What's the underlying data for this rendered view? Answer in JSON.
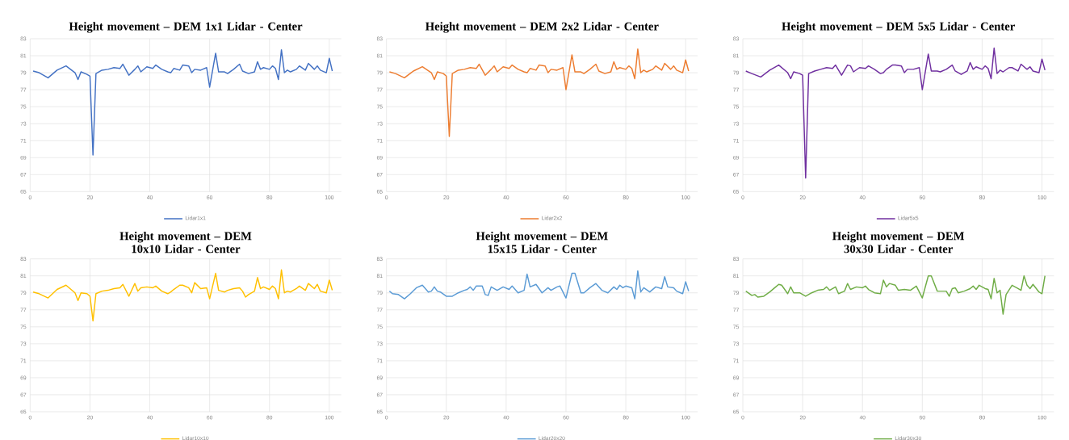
{
  "chart_data": [
    {
      "type": "line",
      "title": "Height movement – DEM 1x1 Lidar - Center",
      "xlim": [
        0,
        104
      ],
      "ylim": [
        65,
        83
      ],
      "xticks": [
        0,
        20,
        40,
        60,
        80,
        100
      ],
      "yticks": [
        65,
        67,
        69,
        71,
        73,
        75,
        77,
        79,
        81,
        83
      ],
      "grid": true,
      "legend": "bottom",
      "series": [
        {
          "name": "Lidar1x1",
          "color": "#4472c4",
          "x": [
            1,
            3,
            6,
            9,
            12,
            15,
            16,
            17,
            19,
            20,
            21,
            22,
            24,
            26,
            28,
            30,
            31,
            33,
            35,
            36,
            37,
            39,
            41,
            42,
            44,
            46,
            47,
            48,
            50,
            51,
            53,
            54,
            55,
            57,
            59,
            60,
            62,
            63,
            65,
            66,
            68,
            70,
            71,
            73,
            75,
            76,
            77,
            78,
            80,
            81,
            82,
            83,
            84,
            85,
            86,
            87,
            89,
            90,
            92,
            93,
            95,
            96,
            97,
            99,
            100,
            101
          ],
          "values": [
            79.2,
            79.0,
            78.4,
            79.3,
            79.8,
            79.0,
            78.2,
            79.1,
            78.8,
            78.6,
            69.3,
            78.9,
            79.3,
            79.4,
            79.6,
            79.5,
            80.0,
            78.7,
            79.4,
            79.8,
            79.1,
            79.7,
            79.5,
            79.9,
            79.4,
            79.1,
            79.0,
            79.5,
            79.3,
            79.9,
            79.8,
            79.0,
            79.4,
            79.3,
            79.6,
            77.3,
            81.3,
            79.1,
            79.1,
            78.9,
            79.4,
            80.0,
            79.2,
            78.9,
            79.1,
            80.3,
            79.4,
            79.6,
            79.4,
            79.8,
            79.5,
            78.2,
            81.7,
            79.0,
            79.3,
            79.1,
            79.4,
            79.8,
            79.3,
            80.1,
            79.4,
            79.8,
            79.3,
            79.0,
            80.7,
            79.2
          ]
        }
      ]
    },
    {
      "type": "line",
      "title": "Height movement – DEM 2x2 Lidar - Center",
      "xlim": [
        0,
        104
      ],
      "ylim": [
        65,
        83
      ],
      "xticks": [
        0,
        20,
        40,
        60,
        80,
        100
      ],
      "yticks": [
        65,
        67,
        69,
        71,
        73,
        75,
        77,
        79,
        81,
        83
      ],
      "grid": true,
      "legend": "bottom",
      "series": [
        {
          "name": "Lidar2x2",
          "color": "#ed7d31",
          "x": [
            1,
            3,
            6,
            9,
            12,
            15,
            16,
            17,
            19,
            20,
            21,
            22,
            24,
            26,
            28,
            30,
            31,
            33,
            35,
            36,
            37,
            39,
            41,
            42,
            44,
            46,
            47,
            48,
            50,
            51,
            53,
            54,
            55,
            57,
            59,
            60,
            62,
            63,
            65,
            66,
            68,
            70,
            71,
            73,
            75,
            76,
            77,
            78,
            80,
            81,
            82,
            83,
            84,
            85,
            86,
            87,
            89,
            90,
            92,
            93,
            95,
            96,
            97,
            99,
            100,
            101
          ],
          "values": [
            79.1,
            78.9,
            78.4,
            79.2,
            79.7,
            79.0,
            78.2,
            79.1,
            78.9,
            78.6,
            71.5,
            78.9,
            79.3,
            79.4,
            79.6,
            79.5,
            80.0,
            78.7,
            79.4,
            79.8,
            79.1,
            79.7,
            79.5,
            79.9,
            79.4,
            79.1,
            79.0,
            79.5,
            79.3,
            79.9,
            79.8,
            79.0,
            79.4,
            79.3,
            79.6,
            77.0,
            81.1,
            79.1,
            79.1,
            78.9,
            79.4,
            80.0,
            79.2,
            78.9,
            79.1,
            80.3,
            79.4,
            79.6,
            79.4,
            79.8,
            79.5,
            78.3,
            81.8,
            79.0,
            79.3,
            79.1,
            79.4,
            79.8,
            79.3,
            80.1,
            79.4,
            79.8,
            79.3,
            79.0,
            80.5,
            79.2
          ]
        }
      ]
    },
    {
      "type": "line",
      "title": "Height movement – DEM 5x5 Lidar - Center",
      "xlim": [
        0,
        104
      ],
      "ylim": [
        65,
        83
      ],
      "xticks": [
        0,
        20,
        40,
        60,
        80,
        100
      ],
      "yticks": [
        65,
        67,
        69,
        71,
        73,
        75,
        77,
        79,
        81,
        83
      ],
      "grid": true,
      "legend": "bottom",
      "series": [
        {
          "name": "Lidar5x5",
          "color": "#7030a0",
          "x": [
            1,
            3,
            6,
            9,
            12,
            15,
            16,
            17,
            19,
            20,
            21,
            22,
            24,
            26,
            28,
            30,
            31,
            33,
            35,
            36,
            37,
            39,
            41,
            42,
            44,
            46,
            47,
            48,
            50,
            51,
            53,
            54,
            55,
            57,
            59,
            60,
            62,
            63,
            65,
            66,
            68,
            70,
            71,
            73,
            75,
            76,
            77,
            78,
            80,
            81,
            82,
            83,
            84,
            85,
            86,
            87,
            89,
            90,
            92,
            93,
            95,
            96,
            97,
            99,
            100,
            101
          ],
          "values": [
            79.2,
            78.9,
            78.5,
            79.3,
            79.9,
            79.0,
            78.3,
            79.1,
            78.9,
            78.7,
            66.6,
            78.9,
            79.2,
            79.4,
            79.6,
            79.5,
            79.9,
            78.7,
            79.9,
            79.8,
            79.1,
            79.6,
            79.5,
            79.8,
            79.4,
            78.9,
            79.0,
            79.4,
            79.9,
            79.9,
            79.8,
            79.0,
            79.4,
            79.4,
            79.6,
            77.0,
            81.2,
            79.2,
            79.2,
            79.1,
            79.4,
            79.9,
            79.2,
            78.8,
            79.2,
            80.2,
            79.4,
            79.7,
            79.4,
            79.8,
            79.5,
            78.3,
            81.9,
            78.9,
            79.3,
            79.1,
            79.6,
            79.6,
            79.2,
            80.0,
            79.4,
            79.7,
            79.2,
            79.0,
            80.6,
            79.3
          ]
        }
      ]
    },
    {
      "type": "line",
      "title": "Height movement – DEM 10x10 Lidar - Center",
      "xlim": [
        0,
        104
      ],
      "ylim": [
        65,
        83
      ],
      "xticks": [
        0,
        20,
        40,
        60,
        80,
        100
      ],
      "yticks": [
        65,
        67,
        69,
        71,
        73,
        75,
        77,
        79,
        81,
        83
      ],
      "grid": true,
      "legend": "bottom",
      "series": [
        {
          "name": "Lidar10x10",
          "color": "#ffc000",
          "x": [
            1,
            3,
            6,
            9,
            12,
            15,
            16,
            17,
            19,
            20,
            21,
            22,
            24,
            26,
            28,
            30,
            31,
            33,
            35,
            36,
            37,
            39,
            41,
            42,
            44,
            46,
            47,
            48,
            50,
            51,
            53,
            54,
            55,
            57,
            59,
            60,
            62,
            63,
            65,
            66,
            68,
            70,
            71,
            72,
            73,
            75,
            76,
            77,
            78,
            80,
            81,
            82,
            83,
            84,
            85,
            86,
            87,
            89,
            90,
            92,
            93,
            95,
            96,
            97,
            99,
            100,
            101
          ],
          "values": [
            79.1,
            78.9,
            78.4,
            79.4,
            79.9,
            79.0,
            78.1,
            79.0,
            78.9,
            78.6,
            75.7,
            78.9,
            79.2,
            79.3,
            79.5,
            79.6,
            80.0,
            78.6,
            80.1,
            79.2,
            79.6,
            79.7,
            79.6,
            79.8,
            79.2,
            78.9,
            79.1,
            79.4,
            79.9,
            79.9,
            79.6,
            79.0,
            80.2,
            79.5,
            79.6,
            78.3,
            81.3,
            79.3,
            79.1,
            79.3,
            79.5,
            79.6,
            79.2,
            78.5,
            78.8,
            79.2,
            80.8,
            79.5,
            79.7,
            79.4,
            79.8,
            79.5,
            78.3,
            81.7,
            79.0,
            79.2,
            79.1,
            79.5,
            79.8,
            79.3,
            80.1,
            79.5,
            80.0,
            79.2,
            79.0,
            80.5,
            79.3
          ]
        }
      ]
    },
    {
      "type": "line",
      "title": "Height movement – DEM 15x15 Lidar - Center",
      "xlim": [
        0,
        104
      ],
      "ylim": [
        65,
        83
      ],
      "xticks": [
        0,
        20,
        40,
        60,
        80,
        100
      ],
      "yticks": [
        65,
        67,
        69,
        71,
        73,
        75,
        77,
        79,
        81,
        83
      ],
      "grid": true,
      "legend": "bottom",
      "series": [
        {
          "name": "Lidar20x20",
          "color": "#5b9bd5",
          "x": [
            1,
            2,
            4,
            6,
            8,
            10,
            12,
            14,
            15,
            16,
            17,
            18,
            20,
            22,
            24,
            26,
            27,
            28,
            29,
            30,
            32,
            33,
            34,
            35,
            37,
            39,
            41,
            42,
            44,
            46,
            47,
            48,
            50,
            52,
            54,
            55,
            57,
            58,
            60,
            62,
            63,
            65,
            66,
            68,
            70,
            72,
            74,
            76,
            77,
            78,
            79,
            80,
            82,
            83,
            84,
            85,
            86,
            88,
            90,
            92,
            93,
            94,
            96,
            97,
            99,
            100,
            101
          ],
          "values": [
            79.2,
            78.9,
            78.8,
            78.3,
            78.9,
            79.6,
            79.9,
            79.1,
            79.2,
            79.7,
            79.2,
            79.1,
            78.6,
            78.6,
            79.0,
            79.3,
            79.4,
            79.7,
            79.3,
            79.8,
            79.8,
            78.8,
            78.7,
            79.7,
            79.3,
            79.7,
            79.4,
            79.8,
            79.0,
            79.3,
            81.2,
            79.7,
            80.0,
            79.0,
            79.6,
            79.3,
            79.7,
            79.8,
            78.4,
            81.3,
            81.3,
            79.0,
            79.0,
            79.6,
            80.1,
            79.3,
            79.0,
            79.7,
            79.4,
            79.9,
            79.6,
            79.8,
            79.6,
            78.3,
            81.6,
            79.1,
            79.6,
            79.1,
            79.7,
            79.5,
            80.9,
            79.7,
            79.6,
            79.2,
            78.9,
            80.3,
            79.2
          ]
        }
      ]
    },
    {
      "type": "line",
      "title": "Height movement – DEM 30x30 Lidar - Center",
      "xlim": [
        0,
        104
      ],
      "ylim": [
        65,
        83
      ],
      "xticks": [
        0,
        20,
        40,
        60,
        80,
        100
      ],
      "yticks": [
        65,
        67,
        69,
        71,
        73,
        75,
        77,
        79,
        81,
        83
      ],
      "grid": true,
      "legend": "bottom",
      "series": [
        {
          "name": "Lidar30x30",
          "color": "#70ad47",
          "x": [
            1,
            3,
            4,
            5,
            7,
            9,
            11,
            12,
            13,
            15,
            16,
            17,
            19,
            21,
            23,
            25,
            27,
            28,
            29,
            31,
            32,
            34,
            35,
            36,
            38,
            40,
            41,
            42,
            44,
            46,
            47,
            48,
            49,
            51,
            52,
            54,
            56,
            58,
            60,
            62,
            63,
            65,
            66,
            68,
            69,
            70,
            71,
            72,
            74,
            76,
            77,
            78,
            79,
            81,
            82,
            83,
            84,
            85,
            86,
            87,
            88,
            90,
            92,
            93,
            94,
            95,
            96,
            97,
            99,
            100,
            101
          ],
          "values": [
            79.2,
            78.7,
            78.8,
            78.5,
            78.6,
            79.1,
            79.7,
            80.0,
            79.9,
            78.9,
            79.7,
            79.0,
            79.0,
            78.6,
            79.0,
            79.3,
            79.4,
            79.7,
            79.3,
            79.7,
            78.9,
            79.2,
            80.1,
            79.4,
            79.7,
            79.6,
            79.8,
            79.4,
            79.0,
            78.9,
            80.5,
            79.7,
            80.1,
            79.9,
            79.3,
            79.4,
            79.3,
            79.8,
            78.4,
            81.0,
            81.0,
            79.2,
            79.2,
            79.2,
            78.6,
            79.5,
            79.6,
            79.0,
            79.2,
            79.5,
            79.8,
            79.4,
            79.9,
            79.5,
            79.4,
            78.3,
            80.7,
            79.0,
            79.3,
            76.5,
            78.8,
            79.9,
            79.5,
            79.3,
            81.0,
            79.9,
            79.5,
            80.0,
            79.1,
            78.9,
            81.0
          ]
        }
      ]
    }
  ]
}
